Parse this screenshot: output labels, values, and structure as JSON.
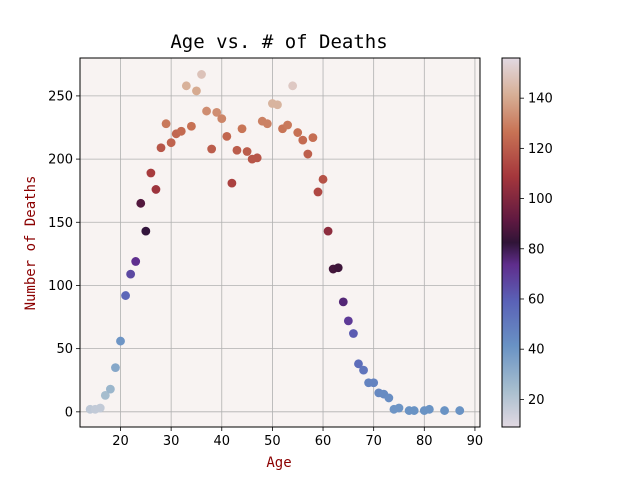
{
  "chart_data": {
    "type": "scatter",
    "title": "Age vs. # of Deaths",
    "xlabel": "Age",
    "ylabel": "Number of Deaths",
    "xlim": [
      12,
      91
    ],
    "ylim": [
      -12,
      280
    ],
    "xticks": [
      10,
      20,
      30,
      40,
      50,
      60,
      70,
      80,
      90
    ],
    "yticks": [
      0,
      50,
      100,
      150,
      200,
      250
    ],
    "grid": true,
    "plot_background": "#f8f3f2",
    "axis_label_color": "#8b0000",
    "colorbar": {
      "colormap": "twilight",
      "range": [
        9,
        156
      ],
      "ticks": [
        20,
        40,
        60,
        80,
        100,
        120,
        140
      ]
    },
    "points": [
      {
        "x": 14,
        "y": 2,
        "c": 18
      },
      {
        "x": 15,
        "y": 2,
        "c": 17
      },
      {
        "x": 16,
        "y": 3,
        "c": 17
      },
      {
        "x": 17,
        "y": 13,
        "c": 24
      },
      {
        "x": 18,
        "y": 18,
        "c": 27
      },
      {
        "x": 19,
        "y": 35,
        "c": 33
      },
      {
        "x": 20,
        "y": 56,
        "c": 40
      },
      {
        "x": 21,
        "y": 92,
        "c": 57
      },
      {
        "x": 22,
        "y": 109,
        "c": 66
      },
      {
        "x": 23,
        "y": 119,
        "c": 73
      },
      {
        "x": 24,
        "y": 165,
        "c": 89
      },
      {
        "x": 25,
        "y": 143,
        "c": 82
      },
      {
        "x": 26,
        "y": 189,
        "c": 110
      },
      {
        "x": 27,
        "y": 176,
        "c": 107
      },
      {
        "x": 28,
        "y": 209,
        "c": 118
      },
      {
        "x": 29,
        "y": 228,
        "c": 128
      },
      {
        "x": 30,
        "y": 213,
        "c": 122
      },
      {
        "x": 31,
        "y": 220,
        "c": 123
      },
      {
        "x": 32,
        "y": 222,
        "c": 124
      },
      {
        "x": 33,
        "y": 258,
        "c": 142
      },
      {
        "x": 34,
        "y": 226,
        "c": 126
      },
      {
        "x": 35,
        "y": 254,
        "c": 140
      },
      {
        "x": 36,
        "y": 267,
        "c": 148
      },
      {
        "x": 37,
        "y": 238,
        "c": 133
      },
      {
        "x": 38,
        "y": 208,
        "c": 120
      },
      {
        "x": 39,
        "y": 237,
        "c": 133
      },
      {
        "x": 40,
        "y": 232,
        "c": 131
      },
      {
        "x": 41,
        "y": 218,
        "c": 123
      },
      {
        "x": 42,
        "y": 181,
        "c": 112
      },
      {
        "x": 43,
        "y": 207,
        "c": 120
      },
      {
        "x": 44,
        "y": 224,
        "c": 127
      },
      {
        "x": 45,
        "y": 206,
        "c": 120
      },
      {
        "x": 46,
        "y": 200,
        "c": 118
      },
      {
        "x": 47,
        "y": 201,
        "c": 118
      },
      {
        "x": 48,
        "y": 230,
        "c": 130
      },
      {
        "x": 49,
        "y": 228,
        "c": 130
      },
      {
        "x": 50,
        "y": 244,
        "c": 143
      },
      {
        "x": 51,
        "y": 243,
        "c": 143
      },
      {
        "x": 52,
        "y": 224,
        "c": 127
      },
      {
        "x": 53,
        "y": 227,
        "c": 128
      },
      {
        "x": 54,
        "y": 258,
        "c": 150
      },
      {
        "x": 55,
        "y": 221,
        "c": 126
      },
      {
        "x": 56,
        "y": 215,
        "c": 124
      },
      {
        "x": 57,
        "y": 204,
        "c": 121
      },
      {
        "x": 58,
        "y": 217,
        "c": 125
      },
      {
        "x": 59,
        "y": 174,
        "c": 114
      },
      {
        "x": 60,
        "y": 184,
        "c": 117
      },
      {
        "x": 61,
        "y": 143,
        "c": 103
      },
      {
        "x": 62,
        "y": 113,
        "c": 86
      },
      {
        "x": 63,
        "y": 114,
        "c": 85
      },
      {
        "x": 64,
        "y": 87,
        "c": 76
      },
      {
        "x": 65,
        "y": 72,
        "c": 70
      },
      {
        "x": 66,
        "y": 62,
        "c": 61
      },
      {
        "x": 67,
        "y": 38,
        "c": 55
      },
      {
        "x": 68,
        "y": 33,
        "c": 52
      },
      {
        "x": 69,
        "y": 23,
        "c": 47
      },
      {
        "x": 70,
        "y": 23,
        "c": 47
      },
      {
        "x": 71,
        "y": 15,
        "c": 45
      },
      {
        "x": 72,
        "y": 14,
        "c": 44
      },
      {
        "x": 73,
        "y": 11,
        "c": 43
      },
      {
        "x": 74,
        "y": 2,
        "c": 40
      },
      {
        "x": 75,
        "y": 3,
        "c": 40
      },
      {
        "x": 77,
        "y": 1,
        "c": 41
      },
      {
        "x": 78,
        "y": 1,
        "c": 41
      },
      {
        "x": 80,
        "y": 1,
        "c": 41
      },
      {
        "x": 81,
        "y": 2,
        "c": 41
      },
      {
        "x": 84,
        "y": 1,
        "c": 41
      },
      {
        "x": 87,
        "y": 1,
        "c": 41
      }
    ]
  }
}
